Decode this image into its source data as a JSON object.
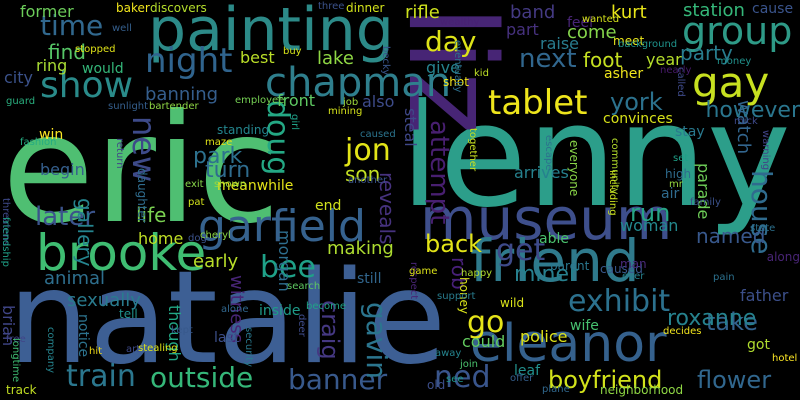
{
  "words": [
    {
      "text": "eric",
      "color": "#4fbf72"
    },
    {
      "text": "lenny",
      "color": "#2c9e8a"
    },
    {
      "text": "natalie",
      "color": "#3d5f94"
    },
    {
      "text": "liz",
      "color": "#472575"
    },
    {
      "text": "painting",
      "color": "#2c8a88"
    },
    {
      "text": "museum",
      "color": "#3e4f8c"
    },
    {
      "text": "friend",
      "color": "#2f7a8c"
    },
    {
      "text": "eleanor",
      "color": "#35618d"
    },
    {
      "text": "brooke",
      "color": "#3fbd72"
    },
    {
      "text": "garfield",
      "color": "#36628e"
    },
    {
      "text": "chapman",
      "color": "#2f7f8d"
    },
    {
      "text": "gay",
      "color": "#c7e020"
    },
    {
      "text": "group",
      "color": "#2e9a87"
    },
    {
      "text": "tablet",
      "color": "#eee51c"
    },
    {
      "text": "show",
      "color": "#2a8b8a"
    },
    {
      "text": "night",
      "color": "#30648e"
    },
    {
      "text": "time",
      "color": "#31688e"
    },
    {
      "text": "new",
      "color": "#3d4a89"
    },
    {
      "text": "doug",
      "color": "#24a884"
    },
    {
      "text": "jon",
      "color": "#e2e418"
    },
    {
      "text": "exhibit",
      "color": "#2c718e"
    },
    {
      "text": "train",
      "color": "#2b778e"
    },
    {
      "text": "outside",
      "color": "#35b779"
    },
    {
      "text": "banner",
      "color": "#38598c"
    },
    {
      "text": "ned",
      "color": "#39558c"
    },
    {
      "text": "boyfriend",
      "color": "#d2e21b"
    },
    {
      "text": "flower",
      "color": "#31678e"
    },
    {
      "text": "take",
      "color": "#33628d"
    },
    {
      "text": "roxanne",
      "color": "#26828e"
    },
    {
      "text": "house",
      "color": "#2f6b8e"
    },
    {
      "text": "get",
      "color": "#3e4a89"
    },
    {
      "text": "run",
      "color": "#26a585"
    },
    {
      "text": "gavin",
      "color": "#2b758e"
    },
    {
      "text": "craig",
      "color": "#453882"
    },
    {
      "text": "bee",
      "color": "#1fa188"
    },
    {
      "text": "later",
      "color": "#3b538b"
    },
    {
      "text": "park",
      "color": "#2d718e"
    },
    {
      "text": "turn",
      "color": "#2f6c8e"
    },
    {
      "text": "day",
      "color": "#dde318"
    },
    {
      "text": "next",
      "color": "#31678e"
    },
    {
      "text": "york",
      "color": "#2c728e"
    },
    {
      "text": "back",
      "color": "#e3e418"
    },
    {
      "text": "go",
      "color": "#e5e419"
    },
    {
      "text": "son",
      "color": "#c2df23"
    },
    {
      "text": "reveals",
      "color": "#46327e"
    },
    {
      "text": "rob",
      "color": "#48207a"
    },
    {
      "text": "miner",
      "color": "#27808e"
    },
    {
      "text": "named",
      "color": "#38588c"
    },
    {
      "text": "however",
      "color": "#2a768e"
    },
    {
      "text": "party",
      "color": "#287d8e"
    },
    {
      "text": "find",
      "color": "#56c667"
    },
    {
      "text": "former",
      "color": "#6ccd5a"
    },
    {
      "text": "ring",
      "color": "#a8db34"
    },
    {
      "text": "city",
      "color": "#3b528b"
    },
    {
      "text": "would",
      "color": "#34b679"
    },
    {
      "text": "banning",
      "color": "#355e8d"
    },
    {
      "text": "lake",
      "color": "#8fd744"
    },
    {
      "text": "best",
      "color": "#bade28"
    },
    {
      "text": "front",
      "color": "#5ec962"
    },
    {
      "text": "also",
      "color": "#3e4c8a"
    },
    {
      "text": "rifle",
      "color": "#cde11d"
    },
    {
      "text": "band",
      "color": "#443a83"
    },
    {
      "text": "part",
      "color": "#46317e"
    },
    {
      "text": "raise",
      "color": "#287c8e"
    },
    {
      "text": "come",
      "color": "#84d44b"
    },
    {
      "text": "feel",
      "color": "#482576"
    },
    {
      "text": "foot",
      "color": "#c5e021"
    },
    {
      "text": "kurt",
      "color": "#e7e419"
    },
    {
      "text": "station",
      "color": "#35b779"
    },
    {
      "text": "cause",
      "color": "#3a548c"
    },
    {
      "text": "year",
      "color": "#b5de2b"
    },
    {
      "text": "give",
      "color": "#26828e"
    },
    {
      "text": "watch",
      "color": "#32658e"
    },
    {
      "text": "gallery",
      "color": "#25848e"
    },
    {
      "text": "life",
      "color": "#7ad151"
    },
    {
      "text": "home",
      "color": "#c0df25"
    },
    {
      "text": "animal",
      "color": "#2e6f8e"
    },
    {
      "text": "sexually",
      "color": "#297b8e"
    },
    {
      "text": "early",
      "color": "#b8de29"
    },
    {
      "text": "witness",
      "color": "#482576"
    },
    {
      "text": "making",
      "color": "#addc30"
    },
    {
      "text": "morgan",
      "color": "#2e6e8e"
    },
    {
      "text": "brian",
      "color": "#404688"
    },
    {
      "text": "begin",
      "color": "#355f8d"
    },
    {
      "text": "win",
      "color": "#fde725"
    },
    {
      "text": "notice",
      "color": "#2c738e"
    },
    {
      "text": "though",
      "color": "#22a785"
    },
    {
      "text": "tell",
      "color": "#20928c"
    },
    {
      "text": "last",
      "color": "#3c4f8a"
    },
    {
      "text": "inside",
      "color": "#1e9c89"
    },
    {
      "text": "still",
      "color": "#31668e"
    },
    {
      "text": "could",
      "color": "#63cb5f"
    },
    {
      "text": "police",
      "color": "#dde318"
    },
    {
      "text": "wife",
      "color": "#46c06f"
    },
    {
      "text": "woman",
      "color": "#23898e"
    },
    {
      "text": "wild",
      "color": "#dae319"
    },
    {
      "text": "able",
      "color": "#4ac16d"
    },
    {
      "text": "attempt",
      "color": "#481f70"
    },
    {
      "text": "steal",
      "color": "#3f4788"
    },
    {
      "text": "arrives",
      "color": "#26818e"
    },
    {
      "text": "father",
      "color": "#3c4f8a"
    },
    {
      "text": "got",
      "color": "#b0dd2f"
    },
    {
      "text": "along",
      "color": "#482475"
    },
    {
      "text": "air",
      "color": "#2f6b8e"
    },
    {
      "text": "parade",
      "color": "#6ece58"
    },
    {
      "text": "convinces",
      "color": "#d8e219"
    },
    {
      "text": "stay",
      "color": "#29798e"
    },
    {
      "text": "standing",
      "color": "#24868e"
    },
    {
      "text": "daughter",
      "color": "#2f6c8e"
    },
    {
      "text": "meanwhile",
      "color": "#e4e419"
    },
    {
      "text": "end",
      "color": "#d0e11c"
    },
    {
      "text": "leaf",
      "color": "#21908d"
    },
    {
      "text": "old",
      "color": "#3d4e8a"
    },
    {
      "text": "see",
      "color": "#1f978b"
    },
    {
      "text": "caused",
      "color": "#38588c"
    },
    {
      "text": "man",
      "color": "#482979"
    },
    {
      "text": "track",
      "color": "#c2df23"
    },
    {
      "text": "baker",
      "color": "#f1e51d"
    },
    {
      "text": "discovers",
      "color": "#b5de2b"
    },
    {
      "text": "three",
      "color": "#3b528b"
    },
    {
      "text": "dinner",
      "color": "#d2e21b"
    },
    {
      "text": "meet",
      "color": "#e9e51a"
    },
    {
      "text": "asher",
      "color": "#efe51c"
    },
    {
      "text": "wanted",
      "color": "#d5e21a"
    },
    {
      "text": "background",
      "color": "#1f948c"
    },
    {
      "text": "nearly",
      "color": "#481a6c"
    },
    {
      "text": "shot",
      "color": "#f4e61e"
    },
    {
      "text": "kid",
      "color": "#bddf26"
    },
    {
      "text": "stopped",
      "color": "#e0e318"
    },
    {
      "text": "buy",
      "color": "#d5e21a"
    },
    {
      "text": "sunlight",
      "color": "#355f8d"
    },
    {
      "text": "bartender",
      "color": "#8fd744"
    },
    {
      "text": "employee",
      "color": "#75d054"
    },
    {
      "text": "job",
      "color": "#9dd93b"
    },
    {
      "text": "mining",
      "color": "#d5e21a"
    },
    {
      "text": "guard",
      "color": "#29af7f"
    },
    {
      "text": "threatens",
      "color": "#3e4989"
    },
    {
      "text": "fashion",
      "color": "#25ac82"
    },
    {
      "text": "return",
      "color": "#404588"
    },
    {
      "text": "maze",
      "color": "#e0e318"
    },
    {
      "text": "pat",
      "color": "#d2e21b"
    },
    {
      "text": "exit",
      "color": "#86d549"
    },
    {
      "text": "shown",
      "color": "#9bd93c"
    },
    {
      "text": "another",
      "color": "#3a548c"
    },
    {
      "text": "caused",
      "color": "#2b748e"
    },
    {
      "text": "together",
      "color": "#c8e020"
    },
    {
      "text": "escape",
      "color": "#2d718e"
    },
    {
      "text": "everyone",
      "color": "#89d548"
    },
    {
      "text": "community",
      "color": "#b5de2b"
    },
    {
      "text": "including",
      "color": "#cae11f"
    },
    {
      "text": "high",
      "color": "#2f6c8e"
    },
    {
      "text": "set",
      "color": "#1fa088"
    },
    {
      "text": "mr",
      "color": "#94d840"
    },
    {
      "text": "family",
      "color": "#3b518b"
    },
    {
      "text": "mick",
      "color": "#3e4989"
    },
    {
      "text": "state",
      "color": "#2c718e"
    },
    {
      "text": "warning",
      "color": "#414487"
    },
    {
      "text": "friendship",
      "color": "#1fa187"
    },
    {
      "text": "free",
      "color": "#414487"
    },
    {
      "text": "longtime",
      "color": "#3fbc73"
    },
    {
      "text": "company",
      "color": "#25848e"
    },
    {
      "text": "hit",
      "color": "#ecd716"
    },
    {
      "text": "art",
      "color": "#3e4a89"
    },
    {
      "text": "stealing",
      "color": "#dde318"
    },
    {
      "text": "kept",
      "color": "#38598c"
    },
    {
      "text": "alone",
      "color": "#31678e"
    },
    {
      "text": "security",
      "color": "#29798e"
    },
    {
      "text": "deer",
      "color": "#3e4c8a"
    },
    {
      "text": "become",
      "color": "#20a386"
    },
    {
      "text": "search",
      "color": "#5ec962"
    },
    {
      "text": "dog",
      "color": "#3b528b"
    },
    {
      "text": "cheryl",
      "color": "#8bd646"
    },
    {
      "text": "girl",
      "color": "#1fa088"
    },
    {
      "text": "well",
      "color": "#355f8d"
    },
    {
      "text": "becky",
      "color": "#39568c"
    },
    {
      "text": "honey",
      "color": "#d8e219"
    },
    {
      "text": "happy",
      "color": "#b0dd2f"
    },
    {
      "text": "respect",
      "color": "#482475"
    },
    {
      "text": "away",
      "color": "#25848e"
    },
    {
      "text": "support",
      "color": "#287c8e"
    },
    {
      "text": "game",
      "color": "#dde318"
    },
    {
      "text": "parent",
      "color": "#2a778e"
    },
    {
      "text": "ever",
      "color": "#26828e"
    },
    {
      "text": "decides",
      "color": "#f1e51d"
    },
    {
      "text": "hotel",
      "color": "#fde725"
    },
    {
      "text": "neighborhood",
      "color": "#8fd744"
    },
    {
      "text": "plane",
      "color": "#31688e"
    },
    {
      "text": "wealthy",
      "color": "#482173"
    },
    {
      "text": "eventually",
      "color": "#2d708e"
    },
    {
      "text": "offer",
      "color": "#355f8d"
    },
    {
      "text": "money",
      "color": "#21918c"
    },
    {
      "text": "called",
      "color": "#3e4a89"
    },
    {
      "text": "join",
      "color": "#4ac16d"
    },
    {
      "text": "pain",
      "color": "#2c718e"
    }
  ]
}
